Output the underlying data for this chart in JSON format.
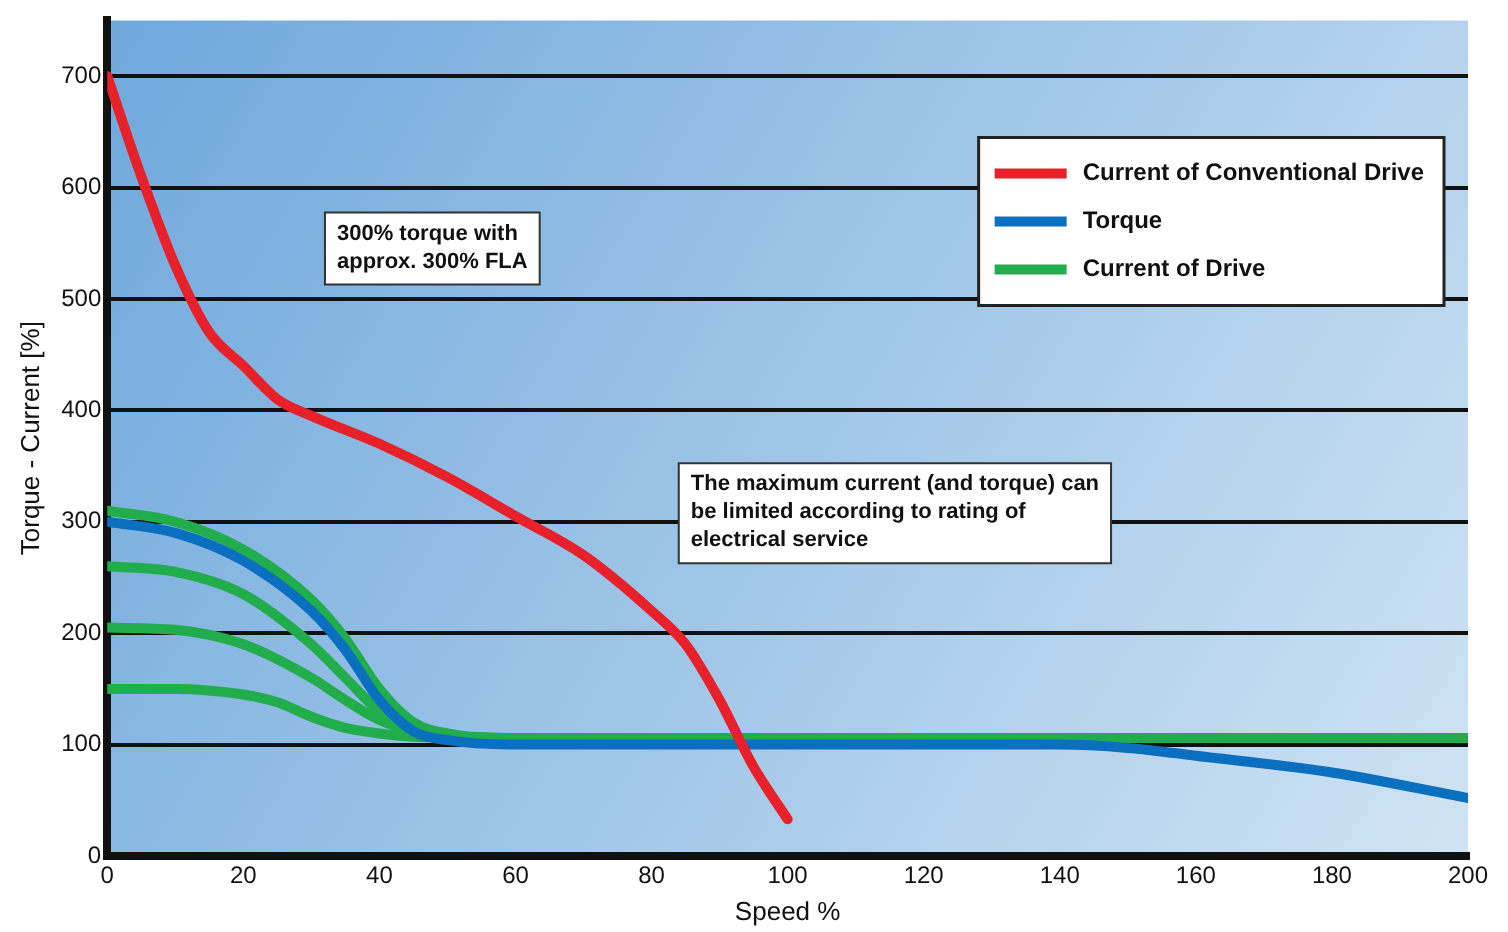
{
  "chart_data": {
    "type": "line",
    "xlabel": "Speed %",
    "ylabel": "Torque - Current [%]",
    "xlim": [
      0,
      200
    ],
    "ylim": [
      0,
      750
    ],
    "xticks": [
      0,
      20,
      40,
      60,
      80,
      100,
      120,
      140,
      160,
      180,
      200
    ],
    "yticks": [
      0,
      100,
      200,
      300,
      400,
      500,
      600,
      700
    ],
    "grid": "y",
    "legend": "top right",
    "marker": "none",
    "line_style": "solid",
    "series": [
      {
        "name": "Current of Conventional Drive",
        "color": "#e8202a",
        "x": [
          0,
          5,
          10,
          15,
          20,
          25,
          30,
          40,
          50,
          60,
          70,
          80,
          85,
          90,
          95,
          100
        ],
        "values": [
          700,
          610,
          530,
          470,
          440,
          410,
          395,
          370,
          340,
          305,
          270,
          220,
          190,
          140,
          80,
          33
        ]
      },
      {
        "name": "Torque",
        "color": "#0a6fbf",
        "x": [
          0,
          10,
          20,
          30,
          35,
          40,
          45,
          50,
          60,
          140,
          150,
          160,
          180,
          200
        ],
        "values": [
          300,
          290,
          265,
          220,
          185,
          140,
          112,
          104,
          100,
          100,
          97,
          90,
          75,
          52
        ]
      },
      {
        "name": "Current of Drive",
        "color": "#21ad4b",
        "x": [
          0,
          10,
          20,
          30,
          35,
          40,
          45,
          50,
          60,
          200
        ],
        "values": [
          310,
          300,
          275,
          230,
          195,
          150,
          120,
          110,
          106,
          106
        ]
      },
      {
        "color": "#21ad4b",
        "x": [
          0,
          10,
          20,
          30,
          35,
          40,
          45,
          50,
          60,
          200
        ],
        "values": [
          260,
          255,
          235,
          190,
          160,
          130,
          115,
          108,
          106,
          106
        ]
      },
      {
        "color": "#21ad4b",
        "x": [
          0,
          10,
          20,
          30,
          35,
          40,
          45,
          50,
          60,
          200
        ],
        "values": [
          205,
          203,
          190,
          160,
          140,
          122,
          112,
          107,
          106,
          106
        ]
      },
      {
        "color": "#21ad4b",
        "x": [
          0,
          10,
          20,
          25,
          30,
          35,
          40,
          45,
          50,
          200
        ],
        "values": [
          150,
          150,
          145,
          138,
          125,
          115,
          110,
          107,
          106,
          106
        ]
      }
    ],
    "annotations": [
      "300% torque with approx. 300% FLA",
      "The maximum current (and torque) can be limited according to rating of electrical service"
    ]
  }
}
